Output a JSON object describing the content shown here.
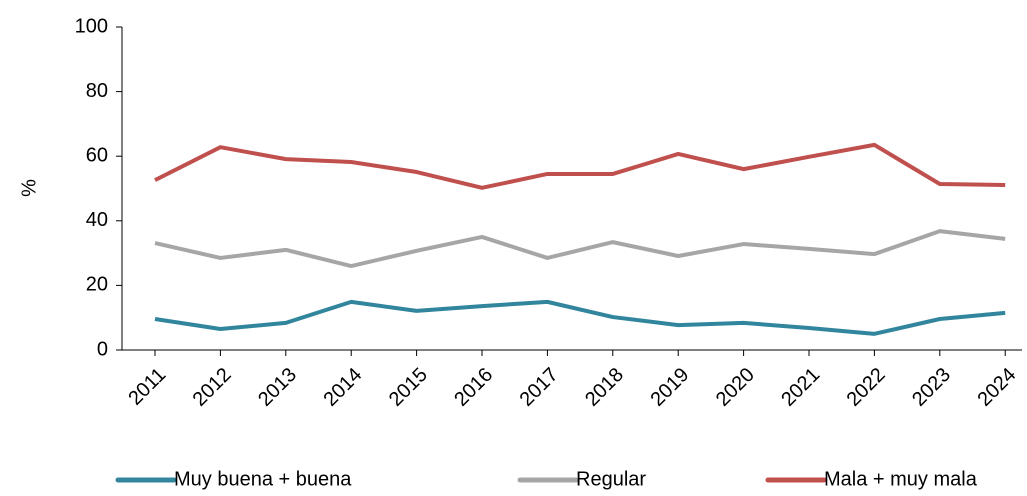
{
  "chart_data": {
    "type": "line",
    "y_label": "%",
    "categories": [
      "2011",
      "2012",
      "2013",
      "2014",
      "2015",
      "2016",
      "2017",
      "2018",
      "2019",
      "2020",
      "2021",
      "2022",
      "2023",
      "2024"
    ],
    "series": [
      {
        "name": "Muy buena + buena",
        "color": "#31859c",
        "values": [
          9.6,
          6.5,
          8.4,
          14.9,
          12.1,
          13.6,
          14.9,
          10.2,
          7.7,
          8.4,
          6.8,
          5.0,
          9.6,
          11.5
        ]
      },
      {
        "name": "Regular",
        "color": "#a6a6a6",
        "values": [
          33.1,
          28.5,
          31.0,
          26.0,
          30.7,
          35.0,
          28.5,
          33.4,
          29.1,
          32.8,
          31.3,
          29.7,
          36.8,
          34.4
        ]
      },
      {
        "name": "Mala + muy mala",
        "color": "#c0504d",
        "values": [
          52.6,
          62.8,
          59.1,
          58.2,
          55.1,
          50.2,
          54.5,
          54.5,
          60.7,
          56.0,
          59.8,
          63.5,
          51.4,
          51.1
        ]
      }
    ],
    "ylim": [
      0,
      100
    ],
    "yticks": [
      0,
      20,
      40,
      60,
      80,
      100
    ],
    "legend": "bottom"
  }
}
